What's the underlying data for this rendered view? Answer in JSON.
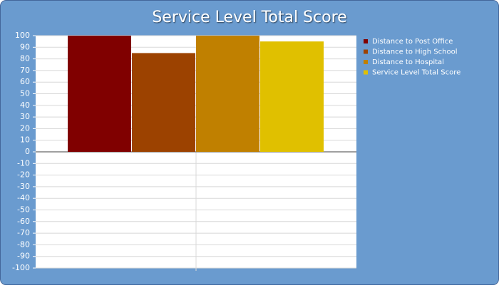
{
  "chart_data": {
    "type": "bar",
    "title": "Service Level Total Score",
    "categories": [
      null
    ],
    "series": [
      {
        "name": "Distance to Post Office",
        "color": "#800000",
        "values": [
          100
        ]
      },
      {
        "name": "Distance to High School",
        "color": "#9c4200",
        "values": [
          85
        ]
      },
      {
        "name": "Distance to Hospital",
        "color": "#c08000",
        "values": [
          100
        ]
      },
      {
        "name": "Service Level Total Score",
        "color": "#e0c000",
        "values": [
          95
        ]
      }
    ],
    "ylim": [
      -100,
      100
    ],
    "yticks": [
      -100,
      -90,
      -80,
      -70,
      -60,
      -50,
      -40,
      -30,
      -20,
      -10,
      0,
      10,
      20,
      30,
      40,
      50,
      60,
      70,
      80,
      90,
      100
    ],
    "grid": true,
    "legend": "right"
  }
}
